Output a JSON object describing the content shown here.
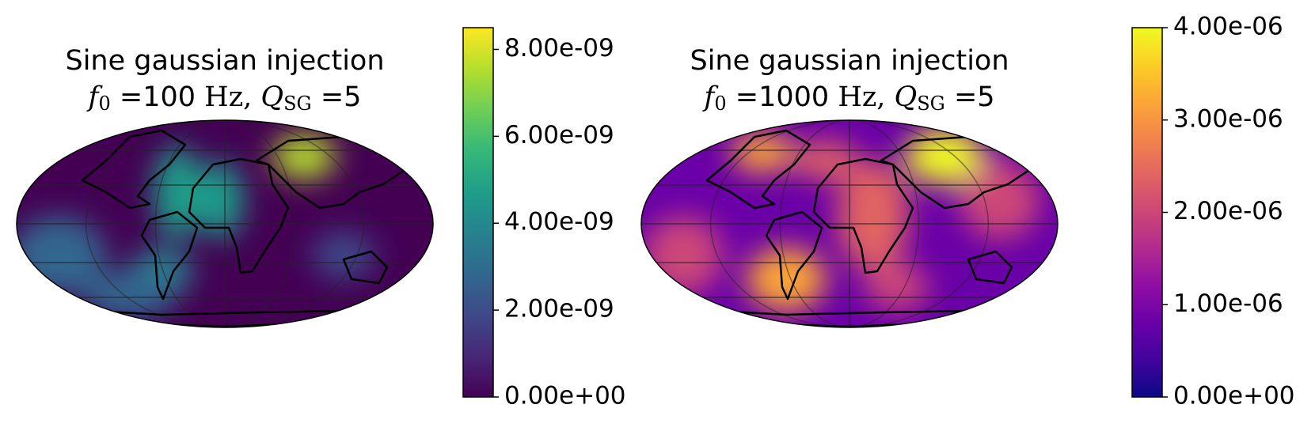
{
  "chart_data": [
    {
      "type": "heatmap",
      "projection": "mollweide",
      "title": "Sine gaussian injection",
      "subtitle": [
        {
          "text": "f",
          "style": "math-italic"
        },
        {
          "text": "0",
          "style": "sub"
        },
        {
          "text": " =100 ",
          "style": "normal"
        },
        {
          "text": "Hz, ",
          "style": "math"
        },
        {
          "text": "Q",
          "style": "math-italic"
        },
        {
          "text": "SG",
          "style": "sub"
        },
        {
          "text": " =5",
          "style": "normal"
        }
      ],
      "colorbar": {
        "lim": [
          0,
          8.5e-09
        ],
        "ticks": [
          {
            "value": 0,
            "label": "0.00e+00"
          },
          {
            "value": 2e-09,
            "label": "2.00e-09"
          },
          {
            "value": 4e-09,
            "label": "4.00e-09"
          },
          {
            "value": 6e-09,
            "label": "6.00e-09"
          },
          {
            "value": 8e-09,
            "label": "8.00e-09"
          }
        ],
        "colors": [
          "#440154",
          "#482878",
          "#3e4989",
          "#31688e",
          "#26828e",
          "#1f9e89",
          "#35b779",
          "#6ece58",
          "#b5de2b",
          "#fde725"
        ]
      }
    },
    {
      "type": "heatmap",
      "projection": "mollweide",
      "title": "Sine gaussian injection",
      "subtitle": [
        {
          "text": "f",
          "style": "math-italic"
        },
        {
          "text": "0",
          "style": "sub"
        },
        {
          "text": " =1000 ",
          "style": "normal"
        },
        {
          "text": "Hz, ",
          "style": "math"
        },
        {
          "text": "Q",
          "style": "math-italic"
        },
        {
          "text": "SG",
          "style": "sub"
        },
        {
          "text": " =5",
          "style": "normal"
        }
      ],
      "colorbar": {
        "lim": [
          0,
          4e-06
        ],
        "ticks": [
          {
            "value": 0,
            "label": "0.00e+00"
          },
          {
            "value": 1e-06,
            "label": "1.00e-06"
          },
          {
            "value": 2e-06,
            "label": "2.00e-06"
          },
          {
            "value": 3e-06,
            "label": "3.00e-06"
          },
          {
            "value": 4e-06,
            "label": "4.00e-06"
          }
        ],
        "colors": [
          "#0d0887",
          "#41049d",
          "#6a00a8",
          "#8f0da4",
          "#b12a90",
          "#cc4778",
          "#e16462",
          "#f2844b",
          "#fca636",
          "#fcce25",
          "#f0f921"
        ]
      }
    }
  ]
}
